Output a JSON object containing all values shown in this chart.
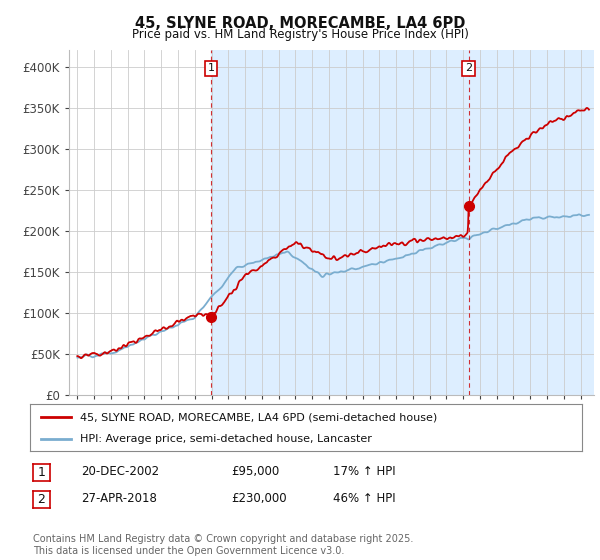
{
  "title": "45, SLYNE ROAD, MORECAMBE, LA4 6PD",
  "subtitle": "Price paid vs. HM Land Registry's House Price Index (HPI)",
  "legend_line1": "45, SLYNE ROAD, MORECAMBE, LA4 6PD (semi-detached house)",
  "legend_line2": "HPI: Average price, semi-detached house, Lancaster",
  "annotation1_date": "20-DEC-2002",
  "annotation1_price": "£95,000",
  "annotation1_hpi": "17% ↑ HPI",
  "annotation2_date": "27-APR-2018",
  "annotation2_price": "£230,000",
  "annotation2_hpi": "46% ↑ HPI",
  "footer": "Contains HM Land Registry data © Crown copyright and database right 2025.\nThis data is licensed under the Open Government Licence v3.0.",
  "red_color": "#cc0000",
  "blue_color": "#7aadcf",
  "vline_color": "#cc0000",
  "background_color": "#ffffff",
  "grid_color": "#cccccc",
  "shade_color": "#ddeeff",
  "ylim": [
    0,
    420000
  ],
  "yticks": [
    0,
    50000,
    100000,
    150000,
    200000,
    250000,
    300000,
    350000,
    400000
  ],
  "ytick_labels": [
    "£0",
    "£50K",
    "£100K",
    "£150K",
    "£200K",
    "£250K",
    "£300K",
    "£350K",
    "£400K"
  ],
  "vline1_x": 2002.97,
  "vline2_x": 2018.32,
  "point1_y": 95000,
  "point2_y": 230000,
  "xmin": 1995,
  "xmax": 2025.5
}
